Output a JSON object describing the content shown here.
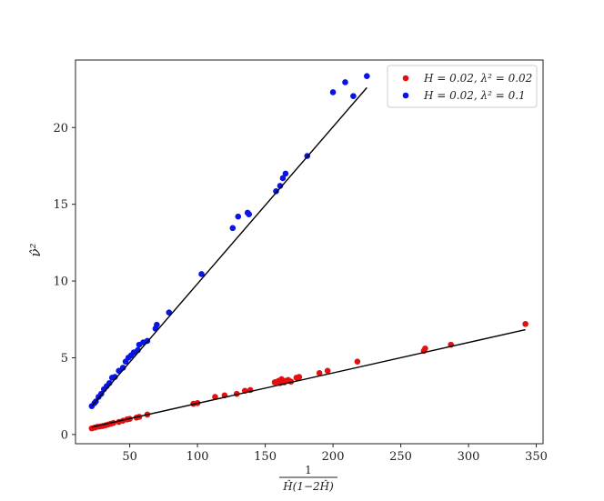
{
  "chart_data": {
    "type": "scatter",
    "xlim": [
      10,
      355
    ],
    "ylim": [
      -0.6,
      24.4
    ],
    "xticks": [
      50,
      100,
      150,
      200,
      250,
      300,
      350
    ],
    "yticks": [
      0,
      5,
      10,
      15,
      20
    ],
    "xlabel": "1/(Ĥ(1−2Ĥ))",
    "ylabel": "ν̂²",
    "legend_position": "top-right",
    "grid": false,
    "series": [
      {
        "name": "H = 0.02, λ² = 0.02",
        "color": "#e41010",
        "points": [
          [
            22,
            0.4
          ],
          [
            24,
            0.45
          ],
          [
            26,
            0.5
          ],
          [
            28,
            0.52
          ],
          [
            30,
            0.55
          ],
          [
            32,
            0.6
          ],
          [
            34,
            0.65
          ],
          [
            36,
            0.7
          ],
          [
            38,
            0.75
          ],
          [
            42,
            0.82
          ],
          [
            45,
            0.9
          ],
          [
            48,
            0.98
          ],
          [
            50,
            1.02
          ],
          [
            55,
            1.1
          ],
          [
            57,
            1.15
          ],
          [
            63,
            1.3
          ],
          [
            97,
            2.0
          ],
          [
            100,
            2.05
          ],
          [
            113,
            2.45
          ],
          [
            120,
            2.55
          ],
          [
            129,
            2.65
          ],
          [
            135,
            2.85
          ],
          [
            139,
            2.9
          ],
          [
            157,
            3.4
          ],
          [
            159,
            3.45
          ],
          [
            160,
            3.5
          ],
          [
            161,
            3.35
          ],
          [
            162,
            3.6
          ],
          [
            164,
            3.4
          ],
          [
            165,
            3.5
          ],
          [
            167,
            3.55
          ],
          [
            169,
            3.45
          ],
          [
            173,
            3.7
          ],
          [
            175,
            3.75
          ],
          [
            190,
            4.0
          ],
          [
            196,
            4.15
          ],
          [
            218,
            4.75
          ],
          [
            267,
            5.45
          ],
          [
            268,
            5.6
          ],
          [
            287,
            5.85
          ],
          [
            342,
            7.2
          ]
        ],
        "fit": [
          [
            22,
            0.48
          ],
          [
            342,
            6.83
          ]
        ]
      },
      {
        "name": "H = 0.02, λ² = 0.1",
        "color": "#0a14e6",
        "points": [
          [
            22,
            1.85
          ],
          [
            24,
            2.05
          ],
          [
            25,
            2.15
          ],
          [
            27,
            2.45
          ],
          [
            29,
            2.65
          ],
          [
            31,
            2.95
          ],
          [
            33,
            3.15
          ],
          [
            35,
            3.35
          ],
          [
            37,
            3.7
          ],
          [
            39,
            3.75
          ],
          [
            42,
            4.15
          ],
          [
            45,
            4.35
          ],
          [
            47,
            4.75
          ],
          [
            49,
            5.0
          ],
          [
            51,
            5.15
          ],
          [
            53,
            5.35
          ],
          [
            56,
            5.5
          ],
          [
            57,
            5.85
          ],
          [
            60,
            6.0
          ],
          [
            63,
            6.1
          ],
          [
            69,
            6.9
          ],
          [
            70,
            7.15
          ],
          [
            79,
            7.95
          ],
          [
            103,
            10.45
          ],
          [
            126,
            13.45
          ],
          [
            130,
            14.2
          ],
          [
            137,
            14.45
          ],
          [
            138,
            14.35
          ],
          [
            158,
            15.85
          ],
          [
            161,
            16.2
          ],
          [
            163,
            16.7
          ],
          [
            165,
            17.0
          ],
          [
            181,
            18.15
          ],
          [
            200,
            22.3
          ],
          [
            209,
            22.95
          ],
          [
            215,
            22.05
          ],
          [
            225,
            23.35
          ]
        ],
        "fit": [
          [
            22,
            1.85
          ],
          [
            225,
            22.6
          ]
        ]
      }
    ]
  }
}
